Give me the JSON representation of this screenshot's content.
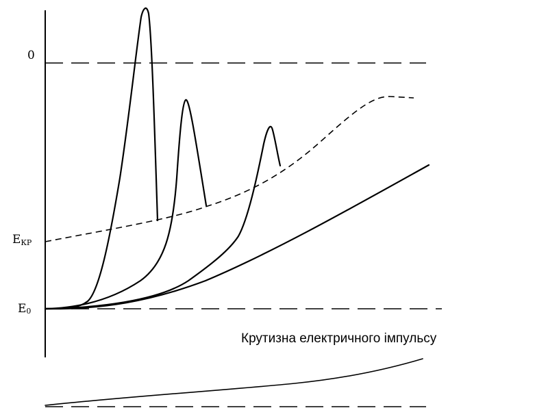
{
  "labels": {
    "zero": "0",
    "e_cr_main": "E",
    "e_cr_sub": "КР",
    "e0_main": "E",
    "e0_sub": "0",
    "caption": "Крутизна електричного імпульсу"
  },
  "curves": {
    "levels": [
      "zero-level",
      "e0-level",
      "bottom-level"
    ],
    "critical_curve": "critical-energy-curve",
    "responses": [
      "response-curve-1",
      "response-curve-2",
      "response-curve-3",
      "baseline-curve"
    ],
    "bottom_curve": "pulse-slope-curve"
  }
}
